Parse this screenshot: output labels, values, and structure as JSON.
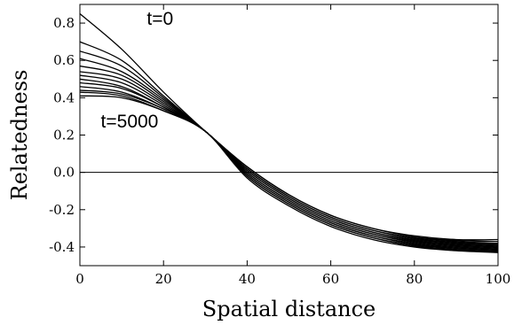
{
  "chart_data": {
    "type": "line",
    "xlabel": "Spatial distance",
    "ylabel": "Relatedness",
    "xlim": [
      0,
      100
    ],
    "ylim": [
      -0.5,
      0.9
    ],
    "x_ticks": [
      0,
      20,
      40,
      60,
      80,
      100
    ],
    "y_ticks": [
      -0.4,
      -0.2,
      0.0,
      0.2,
      0.4,
      0.6,
      0.8
    ],
    "y_tick_labels": [
      "-0.4",
      "-0.2",
      "0.0",
      "0.2",
      "0.4",
      "0.6",
      "0.8"
    ],
    "reference_line_y": 0,
    "grid": false,
    "annotations": [
      {
        "text": "t=0",
        "x": 16,
        "y": 0.79
      },
      {
        "text": "t=5000",
        "x": 5,
        "y": 0.24
      }
    ],
    "series": [
      {
        "curve": [
          [
            0,
            0.85
          ],
          [
            10,
            0.66
          ],
          [
            20,
            0.43
          ],
          [
            30,
            0.22
          ],
          [
            40,
            0.03
          ],
          [
            50,
            -0.12
          ],
          [
            60,
            -0.23
          ],
          [
            70,
            -0.3
          ],
          [
            80,
            -0.34
          ],
          [
            90,
            -0.36
          ],
          [
            100,
            -0.36
          ]
        ]
      },
      {
        "curve": [
          [
            0,
            0.7
          ],
          [
            10,
            0.6
          ],
          [
            20,
            0.41
          ],
          [
            30,
            0.22
          ],
          [
            40,
            0.03
          ],
          [
            50,
            -0.12
          ],
          [
            60,
            -0.23
          ],
          [
            70,
            -0.3
          ],
          [
            80,
            -0.345
          ],
          [
            90,
            -0.365
          ],
          [
            100,
            -0.37
          ]
        ]
      },
      {
        "curve": [
          [
            0,
            0.65
          ],
          [
            10,
            0.57
          ],
          [
            20,
            0.4
          ],
          [
            30,
            0.22
          ],
          [
            40,
            0.02
          ],
          [
            50,
            -0.13
          ],
          [
            60,
            -0.24
          ],
          [
            70,
            -0.31
          ],
          [
            80,
            -0.35
          ],
          [
            90,
            -0.37
          ],
          [
            100,
            -0.38
          ]
        ]
      },
      {
        "curve": [
          [
            0,
            0.61
          ],
          [
            10,
            0.54
          ],
          [
            20,
            0.39
          ],
          [
            30,
            0.22
          ],
          [
            40,
            0.02
          ],
          [
            50,
            -0.13
          ],
          [
            60,
            -0.24
          ],
          [
            70,
            -0.31
          ],
          [
            80,
            -0.355
          ],
          [
            90,
            -0.375
          ],
          [
            100,
            -0.385
          ]
        ]
      },
      {
        "curve": [
          [
            0,
            0.57
          ],
          [
            10,
            0.52
          ],
          [
            20,
            0.38
          ],
          [
            30,
            0.22
          ],
          [
            40,
            0.01
          ],
          [
            50,
            -0.14
          ],
          [
            60,
            -0.25
          ],
          [
            70,
            -0.32
          ],
          [
            80,
            -0.36
          ],
          [
            90,
            -0.38
          ],
          [
            100,
            -0.39
          ]
        ]
      },
      {
        "curve": [
          [
            0,
            0.54
          ],
          [
            10,
            0.5
          ],
          [
            20,
            0.37
          ],
          [
            30,
            0.22
          ],
          [
            40,
            0.01
          ],
          [
            50,
            -0.14
          ],
          [
            60,
            -0.25
          ],
          [
            70,
            -0.32
          ],
          [
            80,
            -0.365
          ],
          [
            90,
            -0.385
          ],
          [
            100,
            -0.395
          ]
        ]
      },
      {
        "curve": [
          [
            0,
            0.52
          ],
          [
            10,
            0.48
          ],
          [
            20,
            0.36
          ],
          [
            30,
            0.22
          ],
          [
            40,
            0.0
          ],
          [
            50,
            -0.15
          ],
          [
            60,
            -0.26
          ],
          [
            70,
            -0.33
          ],
          [
            80,
            -0.37
          ],
          [
            90,
            -0.39
          ],
          [
            100,
            -0.4
          ]
        ]
      },
      {
        "curve": [
          [
            0,
            0.5
          ],
          [
            10,
            0.46
          ],
          [
            20,
            0.35
          ],
          [
            30,
            0.22
          ],
          [
            40,
            0.0
          ],
          [
            50,
            -0.15
          ],
          [
            60,
            -0.26
          ],
          [
            70,
            -0.33
          ],
          [
            80,
            -0.375
          ],
          [
            90,
            -0.395
          ],
          [
            100,
            -0.405
          ]
        ]
      },
      {
        "curve": [
          [
            0,
            0.48
          ],
          [
            10,
            0.45
          ],
          [
            20,
            0.35
          ],
          [
            30,
            0.22
          ],
          [
            40,
            -0.01
          ],
          [
            50,
            -0.16
          ],
          [
            60,
            -0.27
          ],
          [
            70,
            -0.34
          ],
          [
            80,
            -0.38
          ],
          [
            90,
            -0.4
          ],
          [
            100,
            -0.41
          ]
        ]
      },
      {
        "curve": [
          [
            0,
            0.46
          ],
          [
            10,
            0.43
          ],
          [
            20,
            0.34
          ],
          [
            30,
            0.22
          ],
          [
            40,
            -0.01
          ],
          [
            50,
            -0.16
          ],
          [
            60,
            -0.27
          ],
          [
            70,
            -0.34
          ],
          [
            80,
            -0.385
          ],
          [
            90,
            -0.405
          ],
          [
            100,
            -0.415
          ]
        ]
      },
      {
        "curve": [
          [
            0,
            0.44
          ],
          [
            10,
            0.42
          ],
          [
            20,
            0.34
          ],
          [
            30,
            0.22
          ],
          [
            40,
            -0.02
          ],
          [
            50,
            -0.17
          ],
          [
            60,
            -0.28
          ],
          [
            70,
            -0.35
          ],
          [
            80,
            -0.39
          ],
          [
            90,
            -0.41
          ],
          [
            100,
            -0.42
          ]
        ]
      },
      {
        "curve": [
          [
            0,
            0.43
          ],
          [
            10,
            0.41
          ],
          [
            20,
            0.33
          ],
          [
            30,
            0.22
          ],
          [
            40,
            -0.02
          ],
          [
            50,
            -0.17
          ],
          [
            60,
            -0.28
          ],
          [
            70,
            -0.35
          ],
          [
            80,
            -0.395
          ],
          [
            90,
            -0.415
          ],
          [
            100,
            -0.425
          ]
        ]
      },
      {
        "curve": [
          [
            0,
            0.41
          ],
          [
            10,
            0.4
          ],
          [
            20,
            0.33
          ],
          [
            30,
            0.22
          ],
          [
            40,
            -0.03
          ],
          [
            50,
            -0.18
          ],
          [
            60,
            -0.29
          ],
          [
            70,
            -0.36
          ],
          [
            80,
            -0.4
          ],
          [
            90,
            -0.42
          ],
          [
            100,
            -0.43
          ]
        ]
      }
    ]
  }
}
